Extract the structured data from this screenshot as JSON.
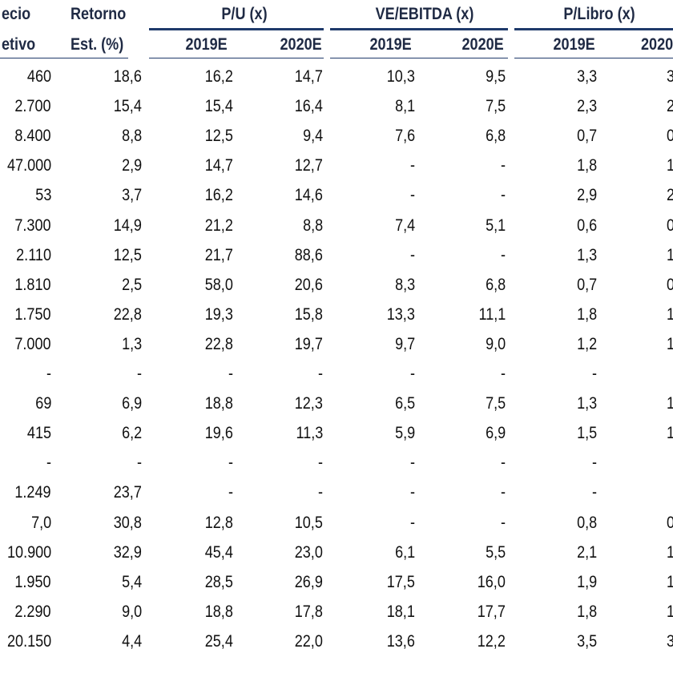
{
  "header": {
    "precio_line1": "ecio",
    "precio_line2": "etivo",
    "retorno_line1": "Retorno",
    "retorno_line2": "Est. (%)",
    "groups": [
      {
        "label": "P/U (x)"
      },
      {
        "label": "VE/EBITDA (x)"
      },
      {
        "label": "P/Libro (x)"
      }
    ],
    "years": [
      "2019E",
      "2020E",
      "2019E",
      "2020E",
      "2019E",
      "2020("
    ]
  },
  "rows": [
    {
      "precio": "460",
      "retorno": "18,6",
      "pu19": "16,2",
      "pu20": "14,7",
      "ve19": "10,3",
      "ve20": "9,5",
      "pl19": "3,3",
      "pl20": "3"
    },
    {
      "precio": "2.700",
      "retorno": "15,4",
      "pu19": "15,4",
      "pu20": "16,4",
      "ve19": "8,1",
      "ve20": "7,5",
      "pl19": "2,3",
      "pl20": "2"
    },
    {
      "precio": "8.400",
      "retorno": "8,8",
      "pu19": "12,5",
      "pu20": "9,4",
      "ve19": "7,6",
      "ve20": "6,8",
      "pl19": "0,7",
      "pl20": "0"
    },
    {
      "precio": "47.000",
      "retorno": "2,9",
      "pu19": "14,7",
      "pu20": "12,7",
      "ve19": "-",
      "ve20": "-",
      "pl19": "1,8",
      "pl20": "1"
    },
    {
      "precio": "53",
      "retorno": "3,7",
      "pu19": "16,2",
      "pu20": "14,6",
      "ve19": "-",
      "ve20": "-",
      "pl19": "2,9",
      "pl20": "2"
    },
    {
      "precio": "7.300",
      "retorno": "14,9",
      "pu19": "21,2",
      "pu20": "8,8",
      "ve19": "7,4",
      "ve20": "5,1",
      "pl19": "0,6",
      "pl20": "0"
    },
    {
      "precio": "2.110",
      "retorno": "12,5",
      "pu19": "21,7",
      "pu20": "88,6",
      "ve19": "-",
      "ve20": "-",
      "pl19": "1,3",
      "pl20": "1"
    },
    {
      "precio": "1.810",
      "retorno": "2,5",
      "pu19": "58,0",
      "pu20": "20,6",
      "ve19": "8,3",
      "ve20": "6,8",
      "pl19": "0,7",
      "pl20": "0"
    },
    {
      "precio": "1.750",
      "retorno": "22,8",
      "pu19": "19,3",
      "pu20": "15,8",
      "ve19": "13,3",
      "ve20": "11,1",
      "pl19": "1,8",
      "pl20": "1"
    },
    {
      "precio": "7.000",
      "retorno": "1,3",
      "pu19": "22,8",
      "pu20": "19,7",
      "ve19": "9,7",
      "ve20": "9,0",
      "pl19": "1,2",
      "pl20": "1"
    },
    {
      "precio": "-",
      "retorno": "-",
      "pu19": "-",
      "pu20": "-",
      "ve19": "-",
      "ve20": "-",
      "pl19": "-",
      "pl20": ""
    },
    {
      "precio": "69",
      "retorno": "6,9",
      "pu19": "18,8",
      "pu20": "12,3",
      "ve19": "6,5",
      "ve20": "7,5",
      "pl19": "1,3",
      "pl20": "1"
    },
    {
      "precio": "415",
      "retorno": "6,2",
      "pu19": "19,6",
      "pu20": "11,3",
      "ve19": "5,9",
      "ve20": "6,9",
      "pl19": "1,5",
      "pl20": "1"
    },
    {
      "precio": "-",
      "retorno": "-",
      "pu19": "-",
      "pu20": "-",
      "ve19": "-",
      "ve20": "-",
      "pl19": "-",
      "pl20": ""
    },
    {
      "precio": "1.249",
      "retorno": "23,7",
      "pu19": "-",
      "pu20": "-",
      "ve19": "-",
      "ve20": "-",
      "pl19": "-",
      "pl20": ""
    },
    {
      "precio": "7,0",
      "retorno": "30,8",
      "pu19": "12,8",
      "pu20": "10,5",
      "ve19": "-",
      "ve20": "-",
      "pl19": "0,8",
      "pl20": "0"
    },
    {
      "precio": "10.900",
      "retorno": "32,9",
      "pu19": "45,4",
      "pu20": "23,0",
      "ve19": "6,1",
      "ve20": "5,5",
      "pl19": "2,1",
      "pl20": "1"
    },
    {
      "precio": "1.950",
      "retorno": "5,4",
      "pu19": "28,5",
      "pu20": "26,9",
      "ve19": "17,5",
      "ve20": "16,0",
      "pl19": "1,9",
      "pl20": "1"
    },
    {
      "precio": "2.290",
      "retorno": "9,0",
      "pu19": "18,8",
      "pu20": "17,8",
      "ve19": "18,1",
      "ve20": "17,7",
      "pl19": "1,8",
      "pl20": "1"
    },
    {
      "precio": "20.150",
      "retorno": "4,4",
      "pu19": "25,4",
      "pu20": "22,0",
      "ve19": "13,6",
      "ve20": "12,2",
      "pl19": "3,5",
      "pl20": "3"
    }
  ]
}
